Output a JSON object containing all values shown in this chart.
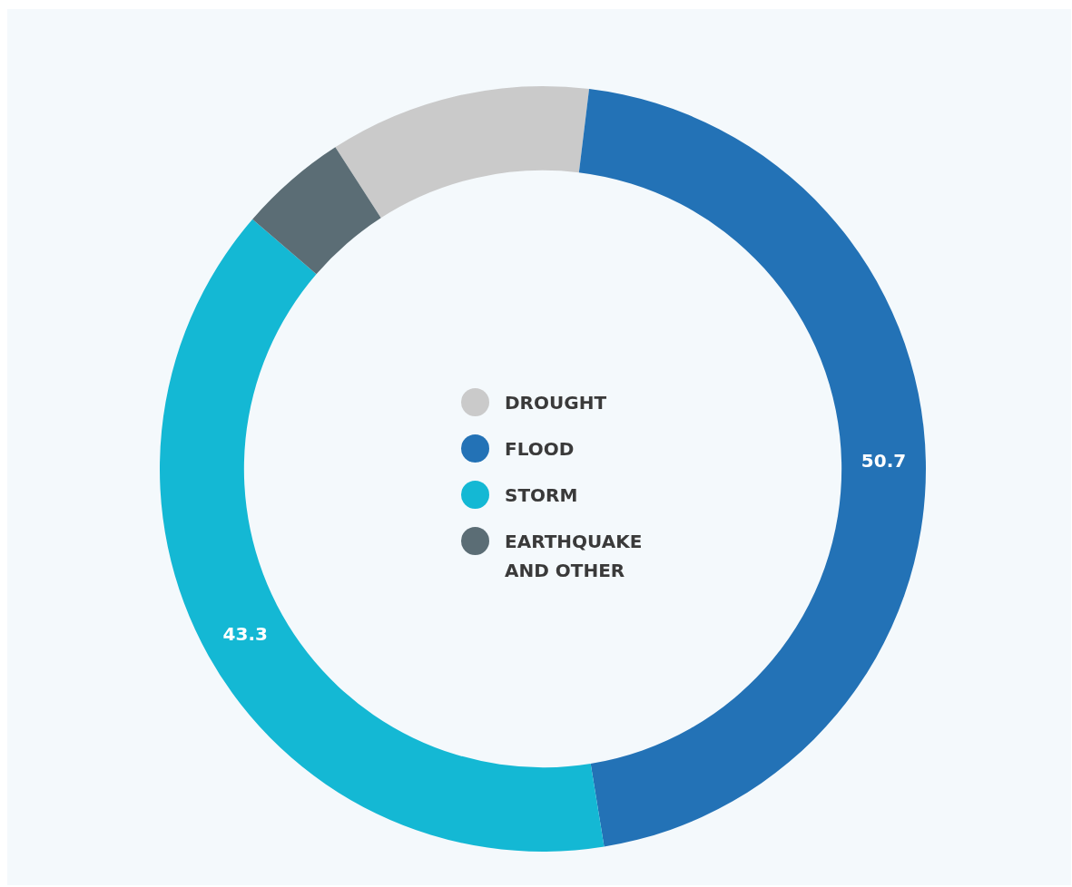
{
  "chart_data": {
    "type": "donut",
    "categories": [
      "DROUGHT",
      "FLOOD",
      "STORM",
      "EARTHQUAKE AND OTHER"
    ],
    "values": [
      12.3,
      50.7,
      43.3,
      5.1
    ],
    "colors": [
      "#cacaca",
      "#2372b6",
      "#14b8d4",
      "#5b6d75"
    ],
    "value_labels": [
      null,
      "50.7",
      "43.3",
      null
    ],
    "legend": "center"
  }
}
